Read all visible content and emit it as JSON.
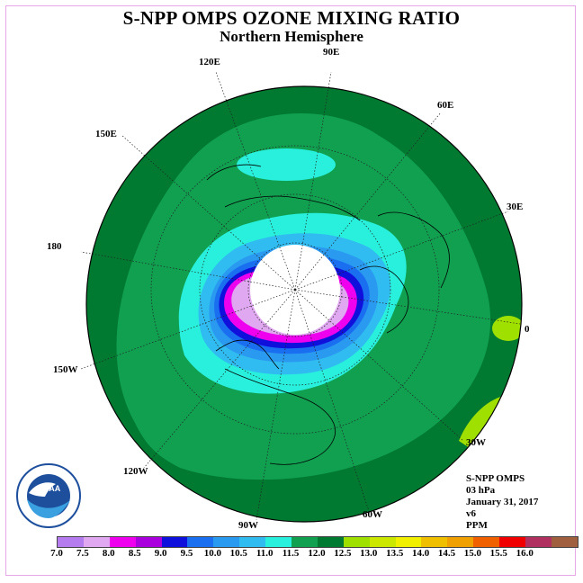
{
  "title": "S-NPP OMPS OZONE MIXING RATIO",
  "subtitle": "Northern Hemisphere",
  "longitudes": [
    "90E",
    "60E",
    "30E",
    "0",
    "30W",
    "60W",
    "90W",
    "120W",
    "150W",
    "180",
    "150E",
    "120E"
  ],
  "info": {
    "instrument": "S-NPP OMPS",
    "level": "03 hPa",
    "date": "January 31, 2017",
    "version": "v6",
    "units": "PPM"
  },
  "logo": {
    "text": "NOAA",
    "ring_text": "NATIONAL OCEANIC AND ATMOSPHERIC ADMINISTRATION · U.S. DEPARTMENT OF COMMERCE"
  },
  "colorbar": {
    "colors": [
      "#b57cf0",
      "#e0a8f0",
      "#ee00ee",
      "#aa00dd",
      "#1010dd",
      "#1a6ef0",
      "#2a9af0",
      "#30bcf0",
      "#28f0dc",
      "#10a050",
      "#007a30",
      "#a0e000",
      "#cce800",
      "#f0f000",
      "#f0c000",
      "#f0a000",
      "#f06000",
      "#f00000",
      "#b03060",
      "#a06040"
    ],
    "ticks": [
      "7.0",
      "7.5",
      "8.0",
      "8.5",
      "9.0",
      "9.5",
      "10.0",
      "10.5",
      "11.0",
      "11.5",
      "12.0",
      "12.5",
      "13.0",
      "13.5",
      "14.0",
      "14.5",
      "15.0",
      "15.5",
      "16.0"
    ]
  }
}
